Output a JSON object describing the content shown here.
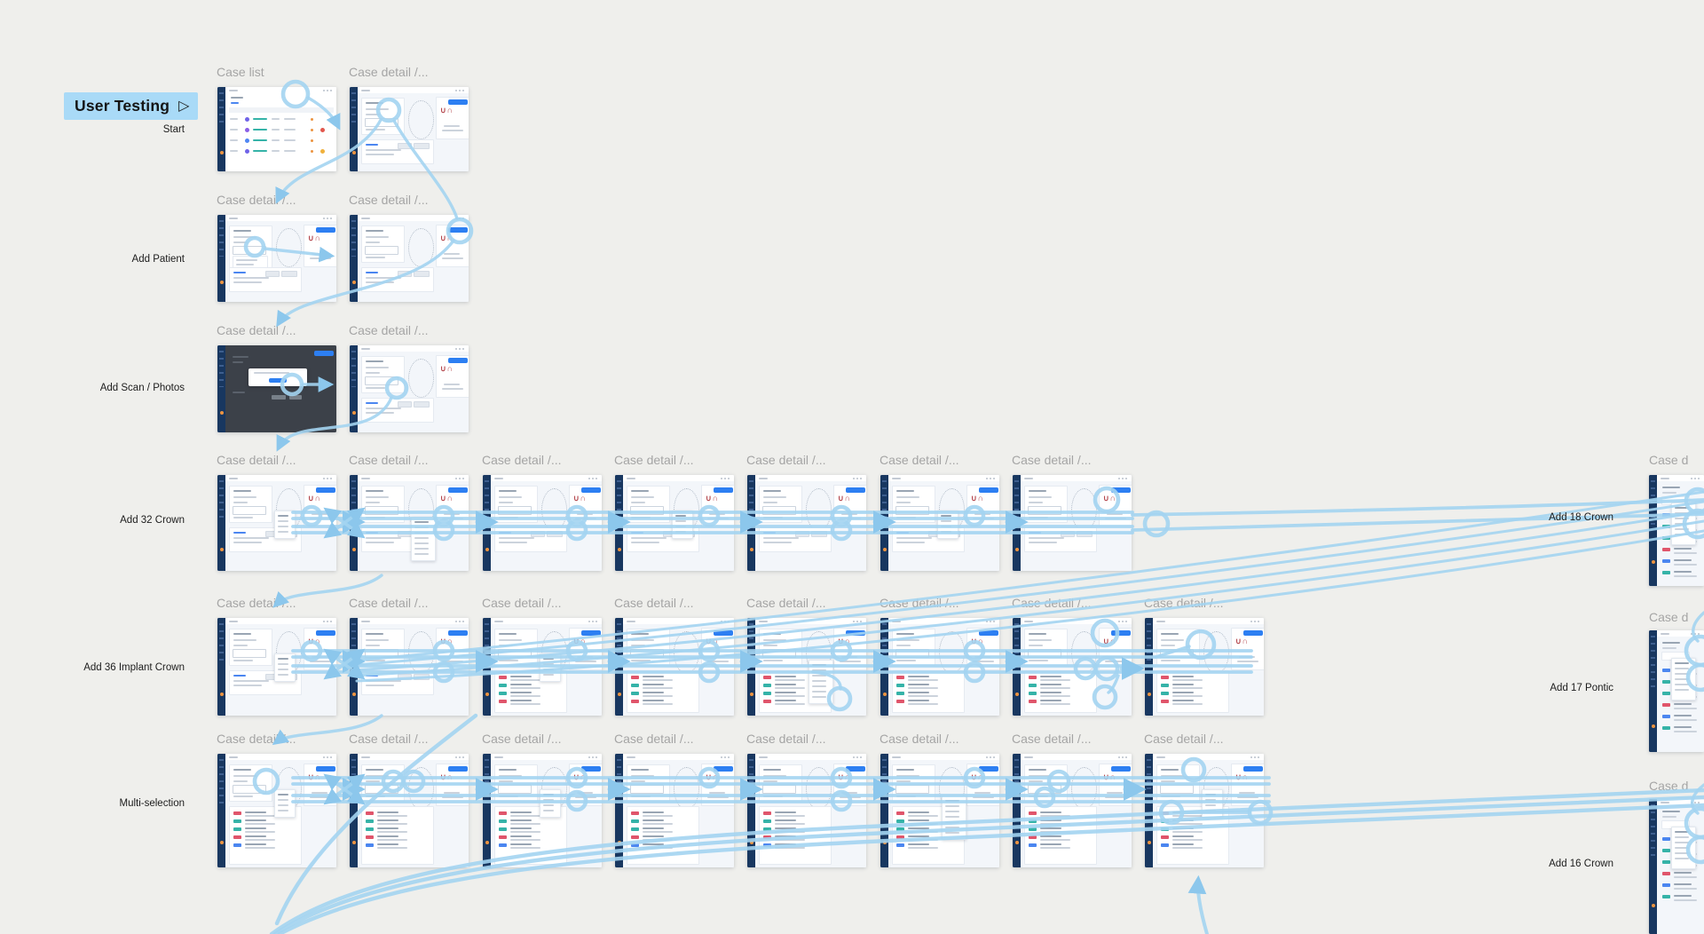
{
  "flow": {
    "name": "User Testing",
    "play_icon": "▷"
  },
  "canvas": {
    "background": "#efefec",
    "connector_color": "#a3d4f1",
    "accent_blue": "#2d7ff2",
    "sidebar_navy": "#183760",
    "title_color": "#a5a5a5"
  },
  "mock": {
    "marks": "∪∩"
  },
  "rows": [
    {
      "label": "Start",
      "screens": [
        {
          "title": "Case list",
          "variant": "list"
        },
        {
          "title": "Case detail /...",
          "variant": "detail"
        }
      ]
    },
    {
      "label": "Add Patient",
      "screens": [
        {
          "title": "Case detail /...",
          "variant": "detail-form"
        },
        {
          "title": "Case detail /...",
          "variant": "detail"
        }
      ]
    },
    {
      "label": "Add Scan / Photos",
      "screens": [
        {
          "title": "Case detail /...",
          "variant": "modal"
        },
        {
          "title": "Case detail /...",
          "variant": "detail"
        }
      ]
    },
    {
      "label": "Add 32 Crown",
      "screens": [
        {
          "title": "Case detail /...",
          "variant": "detail",
          "menu": 1
        },
        {
          "title": "Case detail /...",
          "variant": "detail",
          "menu": 2
        },
        {
          "title": "Case detail /...",
          "variant": "detail"
        },
        {
          "title": "Case detail /...",
          "variant": "detail",
          "menu": 1
        },
        {
          "title": "Case detail /...",
          "variant": "detail"
        },
        {
          "title": "Case detail /...",
          "variant": "detail",
          "menu": 1
        },
        {
          "title": "Case detail /...",
          "variant": "detail"
        }
      ]
    },
    {
      "label": "Add 36 Implant Crown",
      "screens": [
        {
          "title": "Case detail /...",
          "variant": "detail",
          "menu": 1
        },
        {
          "title": "Case detail /...",
          "variant": "detail"
        },
        {
          "title": "Case detail /...",
          "variant": "detail-list",
          "menu": 1
        },
        {
          "title": "Case detail /...",
          "variant": "detail-list"
        },
        {
          "title": "Case detail /...",
          "variant": "detail-list",
          "menu": 2
        },
        {
          "title": "Case detail /...",
          "variant": "detail-list"
        },
        {
          "title": "Case detail /...",
          "variant": "detail-list"
        },
        {
          "title": "Case detail /...",
          "variant": "detail-list"
        }
      ]
    },
    {
      "label": "Multi-selection",
      "screens": [
        {
          "title": "Case detail /...",
          "variant": "detail-list",
          "menu": 1
        },
        {
          "title": "Case detail /...",
          "variant": "detail-list"
        },
        {
          "title": "Case detail /...",
          "variant": "detail-list",
          "menu": 1
        },
        {
          "title": "Case detail /...",
          "variant": "detail-list"
        },
        {
          "title": "Case detail /...",
          "variant": "detail-list"
        },
        {
          "title": "Case detail /...",
          "variant": "detail-list",
          "menu": 2
        },
        {
          "title": "Case detail /...",
          "variant": "detail-list"
        },
        {
          "title": "Case detail /...",
          "variant": "detail-list",
          "menu": 1
        }
      ]
    }
  ],
  "right_column": [
    {
      "label": "Add 18 Crown",
      "screen_title": "Case d"
    },
    {
      "label": "Add 17 Pontic",
      "screen_title": "Case d"
    },
    {
      "label": "Add 16 Crown",
      "screen_title": "Case d"
    }
  ]
}
